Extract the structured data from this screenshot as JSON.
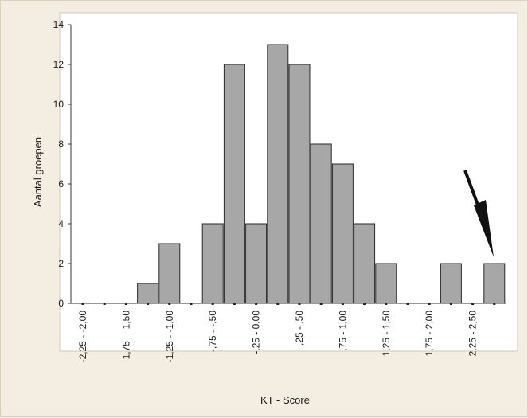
{
  "chart_data": {
    "type": "bar",
    "xlabel": "KT - Score",
    "ylabel": "Aantal groepen",
    "ylim": [
      0,
      14
    ],
    "yticks": [
      0,
      2,
      4,
      6,
      8,
      10,
      12,
      14
    ],
    "categories": [
      "-2,25 - -2,00",
      "",
      "-1,75 - -1,50",
      "",
      "-1,25 - -1,00",
      "",
      "-,75 - -,50",
      "",
      "-,25 - 0,00",
      "",
      ",25 - ,50",
      "",
      ",75 - 1,00",
      "",
      "1,25 - 1,50",
      "",
      "1,75 - 2,00",
      "",
      "2,25 - 2,50",
      ""
    ],
    "values": [
      0,
      0,
      0,
      1,
      3,
      0,
      4,
      12,
      4,
      13,
      12,
      8,
      7,
      4,
      2,
      0,
      0,
      2,
      0,
      2
    ],
    "annotation": "arrow pointing at last bar",
    "bar_color": "#a7a7a7",
    "bar_edge_color": "#2a2a2a",
    "background_color": "#f3eee1",
    "plot_background_color": "#ffffff"
  }
}
